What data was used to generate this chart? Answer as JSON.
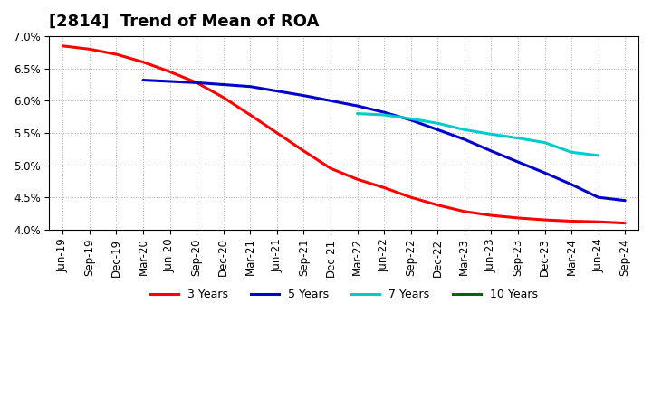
{
  "title": "[2814]  Trend of Mean of ROA",
  "ylabel": "",
  "background_color": "#ffffff",
  "grid_color": "#aaaaaa",
  "x_labels": [
    "Jun-19",
    "Sep-19",
    "Dec-19",
    "Mar-20",
    "Jun-20",
    "Sep-20",
    "Dec-20",
    "Mar-21",
    "Jun-21",
    "Sep-21",
    "Dec-21",
    "Mar-22",
    "Jun-22",
    "Sep-22",
    "Dec-22",
    "Mar-23",
    "Jun-23",
    "Sep-23",
    "Dec-23",
    "Mar-24",
    "Jun-24",
    "Sep-24"
  ],
  "series": {
    "3 Years": {
      "color": "#ff0000",
      "data_x": [
        0,
        1,
        2,
        3,
        4,
        5,
        6,
        7,
        8,
        9,
        10,
        11,
        12,
        13,
        14,
        15,
        16,
        17,
        18,
        19,
        20,
        21
      ],
      "data_y": [
        6.85,
        6.8,
        6.72,
        6.6,
        6.45,
        6.28,
        6.05,
        5.78,
        5.5,
        5.22,
        4.95,
        4.78,
        4.65,
        4.5,
        4.38,
        4.28,
        4.22,
        4.18,
        4.15,
        4.13,
        4.12,
        4.1
      ]
    },
    "5 Years": {
      "color": "#0000cc",
      "data_x": [
        3,
        4,
        5,
        6,
        7,
        8,
        9,
        10,
        11,
        12,
        13,
        14,
        15,
        16,
        17,
        18,
        19,
        20,
        21
      ],
      "data_y": [
        6.32,
        6.3,
        6.28,
        6.25,
        6.22,
        6.15,
        6.08,
        6.0,
        5.92,
        5.82,
        5.7,
        5.55,
        5.4,
        5.22,
        5.05,
        4.88,
        4.7,
        4.5,
        4.45
      ]
    },
    "7 Years": {
      "color": "#00cccc",
      "data_x": [
        11,
        12,
        13,
        14,
        15,
        16,
        17,
        18,
        19,
        20
      ],
      "data_y": [
        5.8,
        5.78,
        5.72,
        5.65,
        5.55,
        5.48,
        5.42,
        5.35,
        5.2,
        5.15
      ]
    },
    "10 Years": {
      "color": "#006600",
      "data_x": [],
      "data_y": []
    }
  },
  "ylim": [
    4.0,
    7.0
  ],
  "yticks": [
    4.0,
    4.5,
    5.0,
    5.5,
    6.0,
    6.5,
    7.0
  ],
  "title_fontsize": 13,
  "tick_fontsize": 8.5,
  "legend_fontsize": 9
}
